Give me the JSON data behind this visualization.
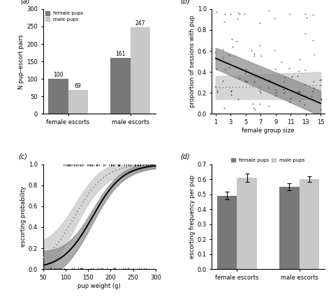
{
  "panel_a": {
    "categories": [
      "female escorts",
      "male escorts"
    ],
    "female_values": [
      100,
      161
    ],
    "male_values": [
      69,
      247
    ],
    "female_color": "#787878",
    "male_color": "#c8c8c8",
    "ylabel": "N pup–escort pairs",
    "ylim": [
      0,
      300
    ],
    "yticks": [
      0,
      50,
      100,
      150,
      200,
      250,
      300
    ]
  },
  "panel_b": {
    "ylabel": "proportion of sessions with pup",
    "xlabel": "female group size",
    "ylim": [
      0,
      1.0
    ],
    "xticks": [
      1,
      3,
      5,
      7,
      9,
      11,
      13,
      15
    ],
    "yticks": [
      0,
      0.2,
      0.4,
      0.6,
      0.8,
      1.0
    ],
    "line1_start": 0.53,
    "line1_end": 0.1,
    "line2_start": 0.25,
    "line2_end": 0.27,
    "ci1_upper_start": 0.63,
    "ci1_upper_end": 0.22,
    "ci1_lower_start": 0.43,
    "ci1_lower_end": -0.02,
    "ci2_upper_start": 0.36,
    "ci2_upper_end": 0.4,
    "ci2_lower_start": 0.14,
    "ci2_lower_end": 0.14
  },
  "panel_c": {
    "ylabel": "escorting probability",
    "xlabel": "pup weight (g)",
    "xlim": [
      50,
      300
    ],
    "ylim": [
      0,
      1.0
    ],
    "xticks": [
      50,
      100,
      150,
      200,
      250,
      300
    ],
    "yticks": [
      0,
      0.2,
      0.4,
      0.6,
      0.8,
      1.0
    ],
    "solid_x0": 160,
    "solid_k": 0.03,
    "dot_x0": 120,
    "dot_k": 0.03
  },
  "panel_d": {
    "categories": [
      "female escorts",
      "male escorts"
    ],
    "female_values": [
      0.49,
      0.55
    ],
    "male_values": [
      0.61,
      0.6
    ],
    "female_errors": [
      0.025,
      0.022
    ],
    "male_errors": [
      0.03,
      0.02
    ],
    "female_color": "#787878",
    "male_color": "#c8c8c8",
    "ylabel": "escorting frequency per pup",
    "ylim": [
      0,
      0.7
    ],
    "yticks": [
      0,
      0.1,
      0.2,
      0.3,
      0.4,
      0.5,
      0.6,
      0.7
    ]
  },
  "dark_color": "#555555",
  "light_color": "#999999",
  "ci_dark": "#888888",
  "ci_light": "#cccccc",
  "bg_color": "#f5f5f5"
}
